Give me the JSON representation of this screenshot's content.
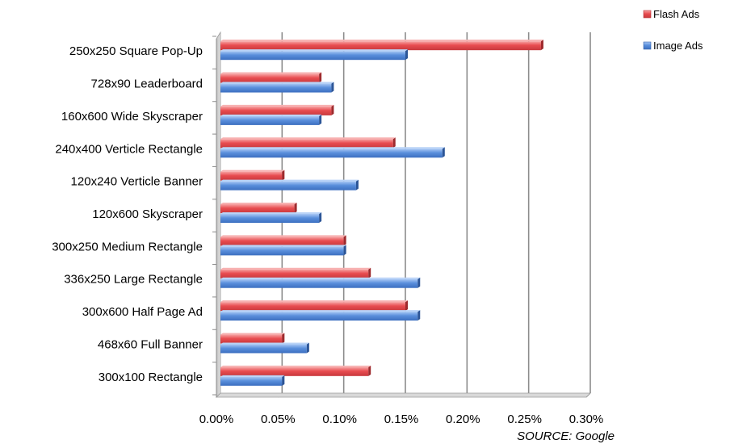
{
  "chart_data": {
    "type": "bar",
    "orientation": "horizontal",
    "categories": [
      "250x250 Square Pop-Up",
      "728x90 Leaderboard",
      "160x600 Wide Skyscraper",
      "240x400 Verticle Rectangle",
      "120x240 Verticle Banner",
      "120x600 Skyscraper",
      "300x250 Medium Rectangle",
      "336x250 Large Rectangle",
      "300x600 Half Page Ad",
      "468x60 Full Banner",
      "300x100 Rectangle"
    ],
    "series": [
      {
        "name": "Flash Ads",
        "color": "#e84c50",
        "values": [
          0.26,
          0.08,
          0.09,
          0.14,
          0.05,
          0.06,
          0.1,
          0.12,
          0.15,
          0.05,
          0.12
        ]
      },
      {
        "name": "Image Ads",
        "color": "#5a8fdc",
        "values": [
          0.15,
          0.09,
          0.08,
          0.18,
          0.11,
          0.08,
          0.1,
          0.16,
          0.16,
          0.07,
          0.05
        ]
      }
    ],
    "xlim": [
      0,
      0.3
    ],
    "x_ticks": [
      "0.00%",
      "0.05%",
      "0.10%",
      "0.15%",
      "0.20%",
      "0.25%",
      "0.30%"
    ],
    "grid": true,
    "legend_position": "top-right",
    "source": "SOURCE:  Google"
  }
}
